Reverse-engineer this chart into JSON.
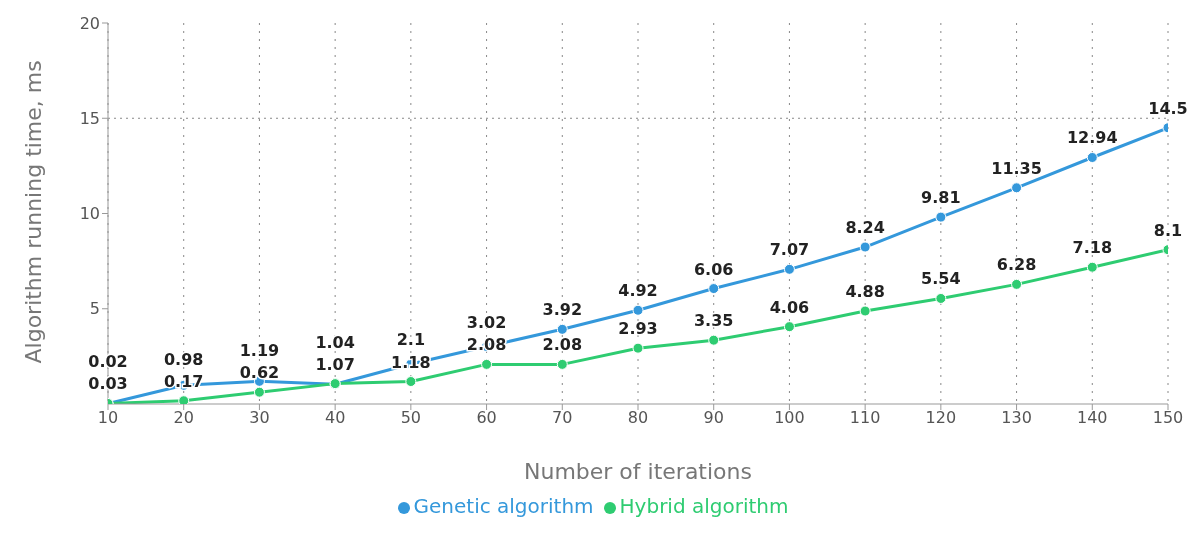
{
  "chart_data": {
    "type": "line",
    "xlabel": "Number of iterations",
    "ylabel": "Algorithm running time, ms",
    "x": [
      10,
      20,
      30,
      40,
      50,
      60,
      70,
      80,
      90,
      100,
      110,
      120,
      130,
      140,
      150
    ],
    "series": [
      {
        "name": "Hybrid algorithm",
        "color": "#2ecc71",
        "values": [
          0.03,
          0.17,
          0.62,
          1.07,
          1.18,
          2.08,
          2.08,
          2.93,
          3.35,
          4.06,
          4.88,
          5.54,
          6.28,
          7.18,
          8.1
        ]
      },
      {
        "name": "Genetic algorithm",
        "color": "#3498db",
        "values": [
          0.02,
          0.98,
          1.19,
          1.04,
          2.1,
          3.02,
          3.92,
          4.92,
          6.06,
          7.07,
          8.24,
          9.81,
          11.35,
          12.94,
          14.5
        ]
      }
    ],
    "xlim": [
      10,
      150
    ],
    "xticks": [
      10,
      20,
      30,
      40,
      50,
      60,
      70,
      80,
      90,
      100,
      110,
      120,
      130,
      140,
      150
    ],
    "ylim": [
      0,
      20
    ],
    "yticks": [
      5,
      10,
      15,
      20
    ],
    "grid": "x",
    "ref_lines": [
      {
        "axis": "y",
        "value": 15,
        "line_style": "dotted"
      }
    ],
    "legend": "bottom",
    "marker": "circle",
    "line_style": "solid",
    "data_labels": true
  }
}
